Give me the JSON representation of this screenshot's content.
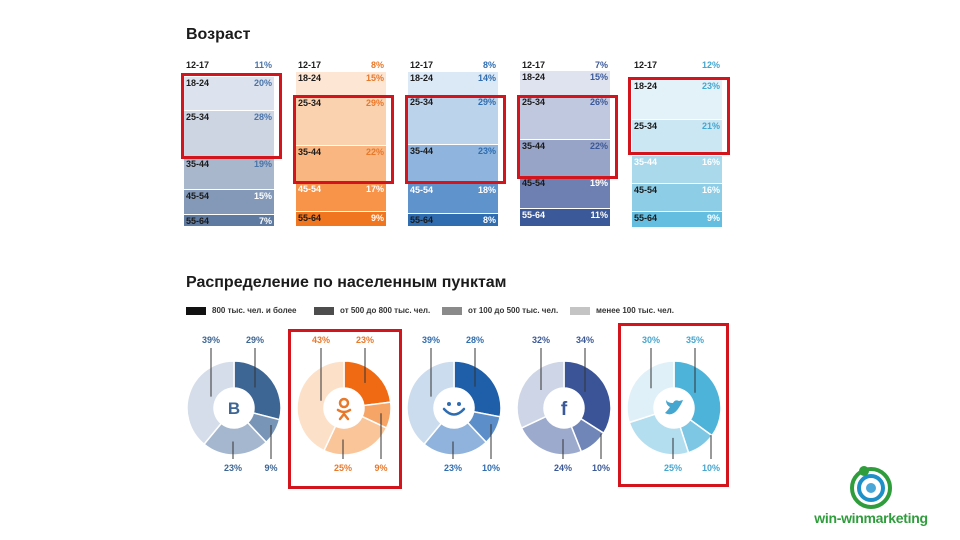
{
  "age": {
    "title": "Возраст",
    "columns": [
      {
        "name": "vk",
        "rows": [
          {
            "label": "12-17",
            "pct": "11%",
            "value": 11,
            "color": "#ffffff",
            "text": "#1b1b1b",
            "pctColor": "#4a74a8"
          },
          {
            "label": "18-24",
            "pct": "20%",
            "value": 20,
            "color": "#dde3ee",
            "text": "#1b1b1b",
            "pctColor": "#4a74a8"
          },
          {
            "label": "25-34",
            "pct": "28%",
            "value": 28,
            "color": "#cdd5e3",
            "text": "#1b1b1b",
            "pctColor": "#4a74a8"
          },
          {
            "label": "35-44",
            "pct": "19%",
            "value": 19,
            "color": "#a9b7cc",
            "text": "#1b1b1b",
            "pctColor": "#4a74a8"
          },
          {
            "label": "45-54",
            "pct": "15%",
            "value": 15,
            "color": "#8399b7",
            "text": "#1b1b1b",
            "pctColor": "#ffffff"
          },
          {
            "label": "55-64",
            "pct": "7%",
            "value": 7,
            "color": "#5e7aa0",
            "text": "#1b1b1b",
            "pctColor": "#ffffff"
          }
        ]
      },
      {
        "name": "ok",
        "rows": [
          {
            "label": "12-17",
            "pct": "8%",
            "value": 8,
            "color": "#ffffff",
            "text": "#1b1b1b",
            "pctColor": "#e8782a"
          },
          {
            "label": "18-24",
            "pct": "15%",
            "value": 15,
            "color": "#fde6d3",
            "text": "#1b1b1b",
            "pctColor": "#e8782a"
          },
          {
            "label": "25-34",
            "pct": "29%",
            "value": 29,
            "color": "#fbd2b0",
            "text": "#1b1b1b",
            "pctColor": "#e8782a"
          },
          {
            "label": "35-44",
            "pct": "22%",
            "value": 22,
            "color": "#f9b680",
            "text": "#1b1b1b",
            "pctColor": "#e8782a"
          },
          {
            "label": "45-54",
            "pct": "17%",
            "value": 17,
            "color": "#f7944a",
            "text": "#ffffff",
            "pctColor": "#ffffff"
          },
          {
            "label": "55-64",
            "pct": "9%",
            "value": 9,
            "color": "#f0761f",
            "text": "#1b1b1b",
            "pctColor": "#ffffff"
          }
        ]
      },
      {
        "name": "mm",
        "rows": [
          {
            "label": "12-17",
            "pct": "8%",
            "value": 8,
            "color": "#ffffff",
            "text": "#1b1b1b",
            "pctColor": "#2f6db0"
          },
          {
            "label": "18-24",
            "pct": "14%",
            "value": 14,
            "color": "#dbe8f5",
            "text": "#1b1b1b",
            "pctColor": "#2f6db0"
          },
          {
            "label": "25-34",
            "pct": "29%",
            "value": 29,
            "color": "#bcd3ec",
            "text": "#1b1b1b",
            "pctColor": "#2f6db0"
          },
          {
            "label": "35-44",
            "pct": "23%",
            "value": 23,
            "color": "#8fb5de",
            "text": "#1b1b1b",
            "pctColor": "#2f6db0"
          },
          {
            "label": "45-54",
            "pct": "18%",
            "value": 18,
            "color": "#5f93cc",
            "text": "#ffffff",
            "pctColor": "#ffffff"
          },
          {
            "label": "55-64",
            "pct": "8%",
            "value": 8,
            "color": "#2f6db0",
            "text": "#1b1b1b",
            "pctColor": "#ffffff"
          }
        ]
      },
      {
        "name": "fb",
        "rows": [
          {
            "label": "12-17",
            "pct": "7%",
            "value": 7,
            "color": "#ffffff",
            "text": "#1b1b1b",
            "pctColor": "#3b5998"
          },
          {
            "label": "18-24",
            "pct": "15%",
            "value": 15,
            "color": "#dfe3ef",
            "text": "#1b1b1b",
            "pctColor": "#3b5998"
          },
          {
            "label": "25-34",
            "pct": "26%",
            "value": 26,
            "color": "#c0c8df",
            "text": "#1b1b1b",
            "pctColor": "#3b5998"
          },
          {
            "label": "35-44",
            "pct": "22%",
            "value": 22,
            "color": "#97a4c7",
            "text": "#1b1b1b",
            "pctColor": "#3b5998"
          },
          {
            "label": "45-54",
            "pct": "19%",
            "value": 19,
            "color": "#6e80b1",
            "text": "#1b1b1b",
            "pctColor": "#ffffff"
          },
          {
            "label": "55-64",
            "pct": "11%",
            "value": 11,
            "color": "#3b5998",
            "text": "#ffffff",
            "pctColor": "#ffffff"
          }
        ]
      },
      {
        "name": "tw",
        "rows": [
          {
            "label": "12-17",
            "pct": "12%",
            "value": 12,
            "color": "#ffffff",
            "text": "#1b1b1b",
            "pctColor": "#45a6cf"
          },
          {
            "label": "18-24",
            "pct": "23%",
            "value": 23,
            "color": "#e3f2f9",
            "text": "#1b1b1b",
            "pctColor": "#45a6cf"
          },
          {
            "label": "25-34",
            "pct": "21%",
            "value": 21,
            "color": "#cbe7f3",
            "text": "#1b1b1b",
            "pctColor": "#45a6cf"
          },
          {
            "label": "35-44",
            "pct": "16%",
            "value": 16,
            "color": "#abd9ec",
            "text": "#ffffff",
            "pctColor": "#ffffff"
          },
          {
            "label": "45-54",
            "pct": "16%",
            "value": 16,
            "color": "#8ecde6",
            "text": "#1b1b1b",
            "pctColor": "#ffffff"
          },
          {
            "label": "55-64",
            "pct": "9%",
            "value": 9,
            "color": "#64bedf",
            "text": "#1b1b1b",
            "pctColor": "#ffffff"
          }
        ]
      }
    ]
  },
  "distribution": {
    "title": "Распределение по населенным пунктам",
    "legend": [
      {
        "label": "800 тыс. чел. и более",
        "color": "#111111"
      },
      {
        "label": "от 500 до 800 тыс. чел.",
        "color": "#4d4d4d"
      },
      {
        "label": "от 100 до 500 тыс. чел.",
        "color": "#8a8a8a"
      },
      {
        "label": "менее 100 тыс. чел.",
        "color": "#c4c4c4"
      }
    ],
    "icon_names": [
      "vk-icon",
      "odnoklassniki-icon",
      "moimir-icon",
      "facebook-icon",
      "twitter-icon"
    ]
  },
  "chart_data": {
    "type": "pie",
    "title": "Распределение по населенным пунктам",
    "categories": [
      "800 тыс. чел. и более",
      "от 500 до 800 тыс. чел.",
      "от 100 до 500 тыс. чел.",
      "менее 100 тыс. чел."
    ],
    "series": [
      {
        "values": [
          29,
          9,
          23,
          39
        ],
        "labels": [
          "29%",
          "9%",
          "23%",
          "39%"
        ],
        "colors": [
          "#3d6694",
          "#7895b8",
          "#a4b7cf",
          "#d4dde9"
        ],
        "labelColor": "#3d6694"
      },
      {
        "values": [
          23,
          9,
          25,
          43
        ],
        "labels": [
          "23%",
          "9%",
          "25%",
          "43%"
        ],
        "colors": [
          "#f06a14",
          "#f6a567",
          "#fac598",
          "#fde0c8"
        ],
        "labelColor": "#e8782a"
      },
      {
        "values": [
          28,
          10,
          23,
          39
        ],
        "labels": [
          "28%",
          "10%",
          "23%",
          "39%"
        ],
        "colors": [
          "#1f5ea8",
          "#5c8fca",
          "#8fb3dc",
          "#cbdcee"
        ],
        "labelColor": "#2f6db0"
      },
      {
        "values": [
          34,
          10,
          24,
          32
        ],
        "labels": [
          "34%",
          "10%",
          "24%",
          "32%"
        ],
        "colors": [
          "#3a5497",
          "#7086b8",
          "#9cabcd",
          "#ced5e6"
        ],
        "labelColor": "#3b5998"
      },
      {
        "values": [
          35,
          10,
          25,
          30
        ],
        "labels": [
          "35%",
          "10%",
          "25%",
          "30%"
        ],
        "colors": [
          "#4eb3d9",
          "#7ec7e4",
          "#b3def0",
          "#dff0f8"
        ],
        "labelColor": "#45a6cf"
      }
    ]
  },
  "logo": {
    "text": "win-winmarketing"
  }
}
